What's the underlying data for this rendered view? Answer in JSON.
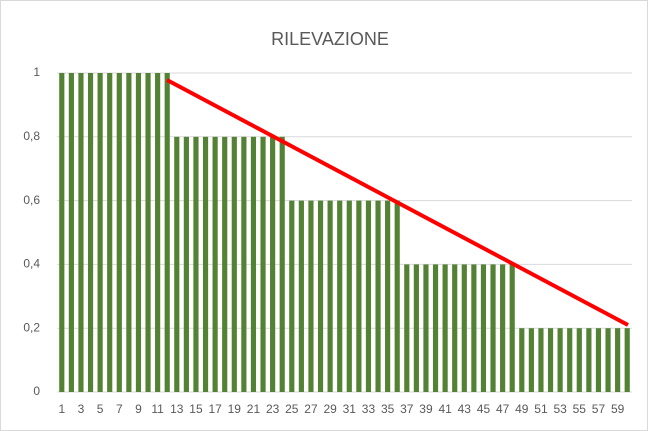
{
  "chart_data": {
    "type": "bar",
    "title": "RILEVAZIONE",
    "categories": [
      "1",
      null,
      "3",
      null,
      "5",
      null,
      "7",
      null,
      "9",
      null,
      "11",
      null,
      "13",
      null,
      "15",
      null,
      "17",
      null,
      "19",
      null,
      "21",
      null,
      "23",
      null,
      "25",
      null,
      "27",
      null,
      "29",
      null,
      "31",
      null,
      "33",
      null,
      "35",
      null,
      "37",
      null,
      "39",
      null,
      "41",
      null,
      "43",
      null,
      "45",
      null,
      "47",
      null,
      "49",
      null,
      "51",
      null,
      "53",
      null,
      "55",
      null,
      "57",
      null,
      "59",
      null
    ],
    "values": [
      1,
      1,
      1,
      1,
      1,
      1,
      1,
      1,
      1,
      1,
      1,
      1,
      0.8,
      0.8,
      0.8,
      0.8,
      0.8,
      0.8,
      0.8,
      0.8,
      0.8,
      0.8,
      0.8,
      0.8,
      0.6,
      0.6,
      0.6,
      0.6,
      0.6,
      0.6,
      0.6,
      0.6,
      0.6,
      0.6,
      0.6,
      0.6,
      0.4,
      0.4,
      0.4,
      0.4,
      0.4,
      0.4,
      0.4,
      0.4,
      0.4,
      0.4,
      0.4,
      0.4,
      0.2,
      0.2,
      0.2,
      0.2,
      0.2,
      0.2,
      0.2,
      0.2,
      0.2,
      0.2,
      0.2,
      0.2
    ],
    "color": "#548235",
    "ylim": [
      0,
      1
    ],
    "yticks": [
      0,
      {
        "value": 0.2,
        "label": "0,2"
      },
      {
        "value": 0.4,
        "label": "0,4"
      },
      {
        "value": 0.6,
        "label": "0,6"
      },
      {
        "value": 0.8,
        "label": "0,8"
      },
      1
    ],
    "grid": true
  }
}
